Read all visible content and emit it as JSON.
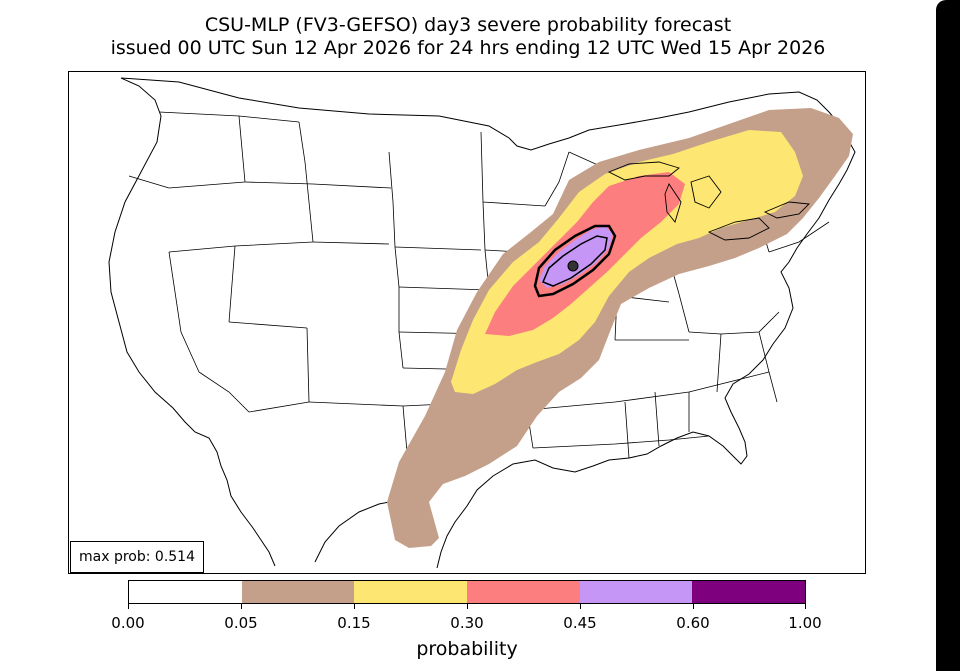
{
  "title": {
    "line1": "CSU-MLP (FV3-GEFSO) day3 severe probability forecast",
    "line2": "issued 00 UTC Sun 12 Apr 2026 for 24 hrs ending 12 UTC Wed 15 Apr 2026"
  },
  "max_prob_label": "max prob: 0.514",
  "colorbar": {
    "label": "probability",
    "ticks": [
      "0.00",
      "0.05",
      "0.15",
      "0.30",
      "0.45",
      "0.60",
      "1.00"
    ],
    "colors": [
      "#ffffff",
      "#c4a08a",
      "#fde772",
      "#fd7e7e",
      "#c696f6",
      "#7e007e"
    ]
  },
  "map": {
    "region": "CONUS",
    "layers": [
      {
        "level": "0.05-0.15",
        "color": "#c4a08a"
      },
      {
        "level": "0.15-0.30",
        "color": "#fde772"
      },
      {
        "level": "0.30-0.45",
        "color": "#fd7e7e"
      },
      {
        "level": "0.45-0.60",
        "color": "#c696f6"
      }
    ],
    "hatch_contour": "black outline",
    "max_marker": "dot"
  }
}
